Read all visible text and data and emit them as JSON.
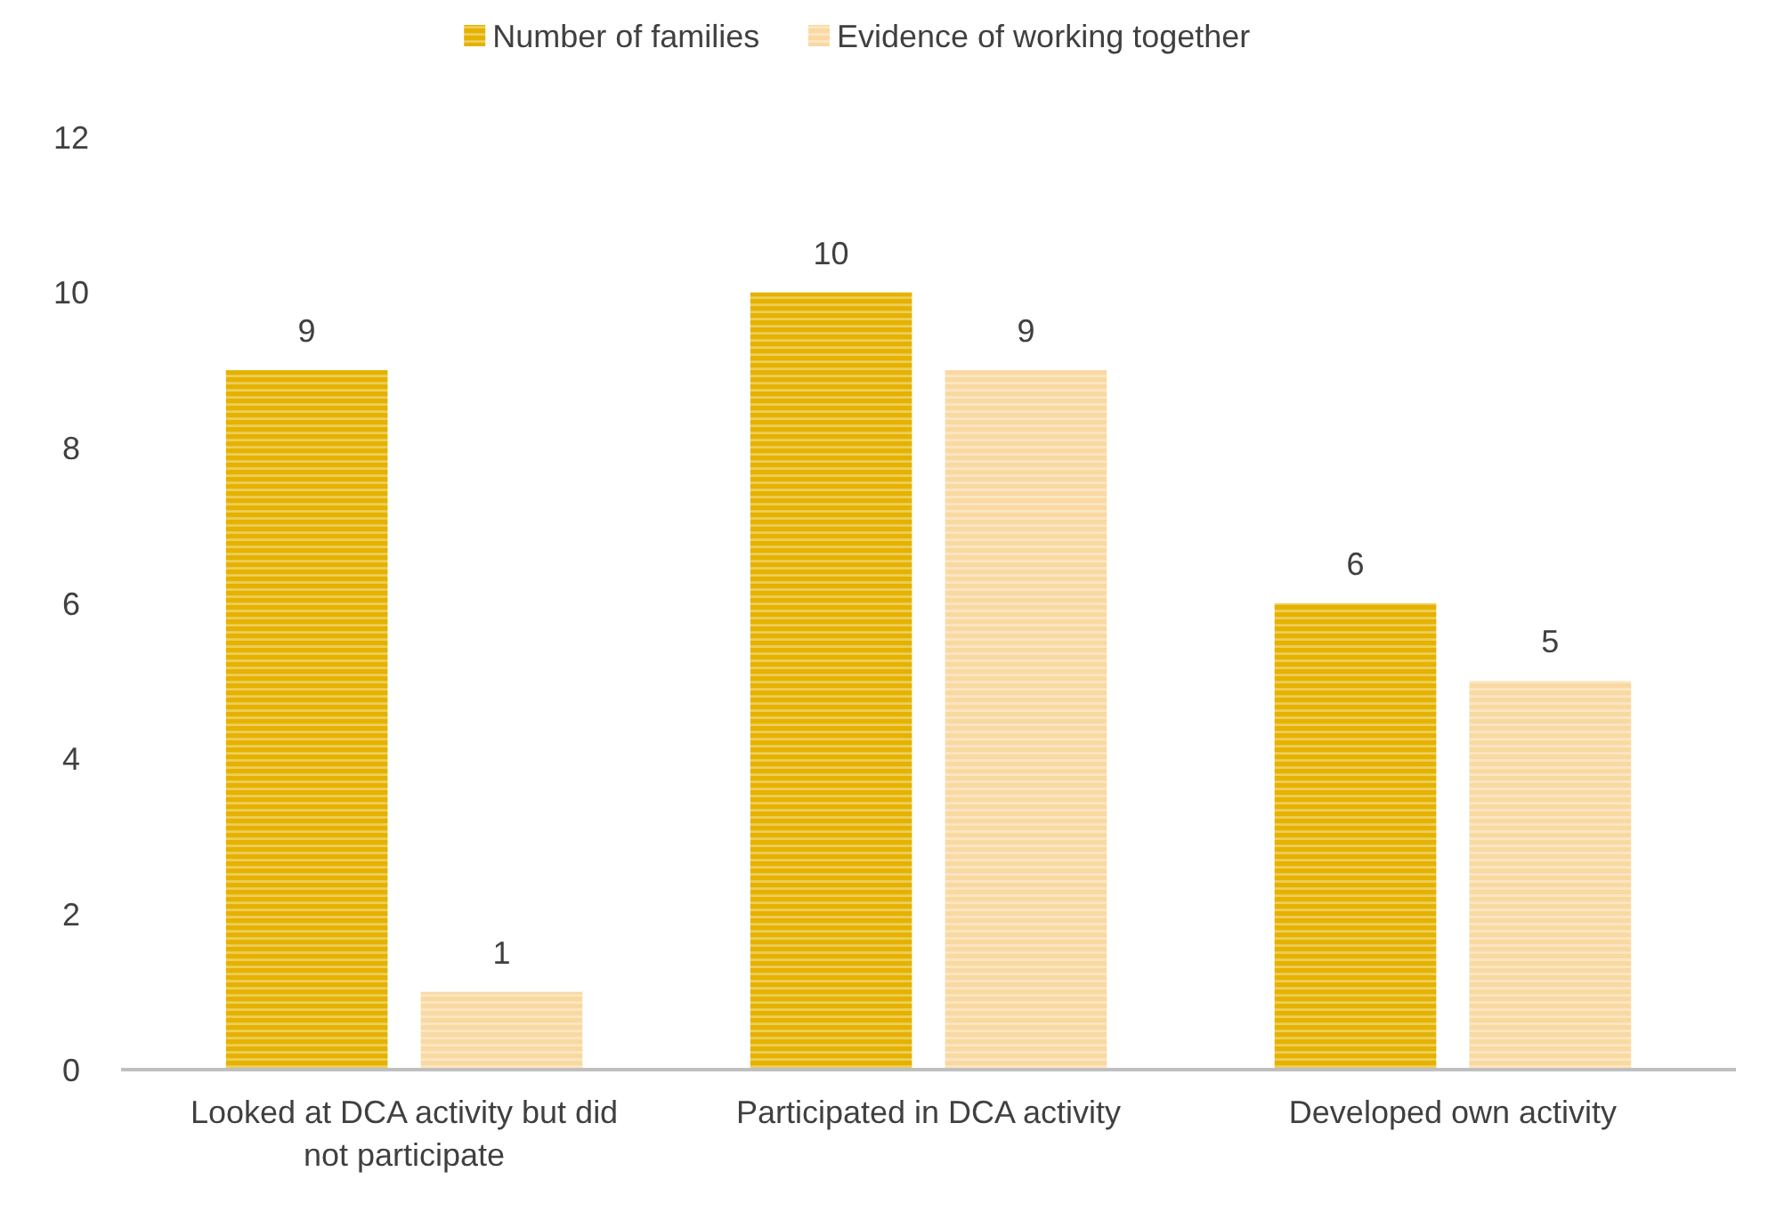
{
  "chart_data": {
    "type": "bar",
    "categories": [
      "Looked at DCA activity but did not participate",
      "Participated in DCA activity",
      "Developed own activity"
    ],
    "series": [
      {
        "name": "Number of families",
        "color": "#e5b200",
        "values": [
          9,
          10,
          6
        ]
      },
      {
        "name": "Evidence of working together",
        "color": "#f9d9a2",
        "values": [
          1,
          9,
          5
        ]
      }
    ],
    "ylim": [
      0,
      12
    ],
    "yticks": [
      0,
      2,
      4,
      6,
      8,
      10,
      12
    ],
    "grid": false,
    "legend": "top",
    "data_labels": true
  }
}
